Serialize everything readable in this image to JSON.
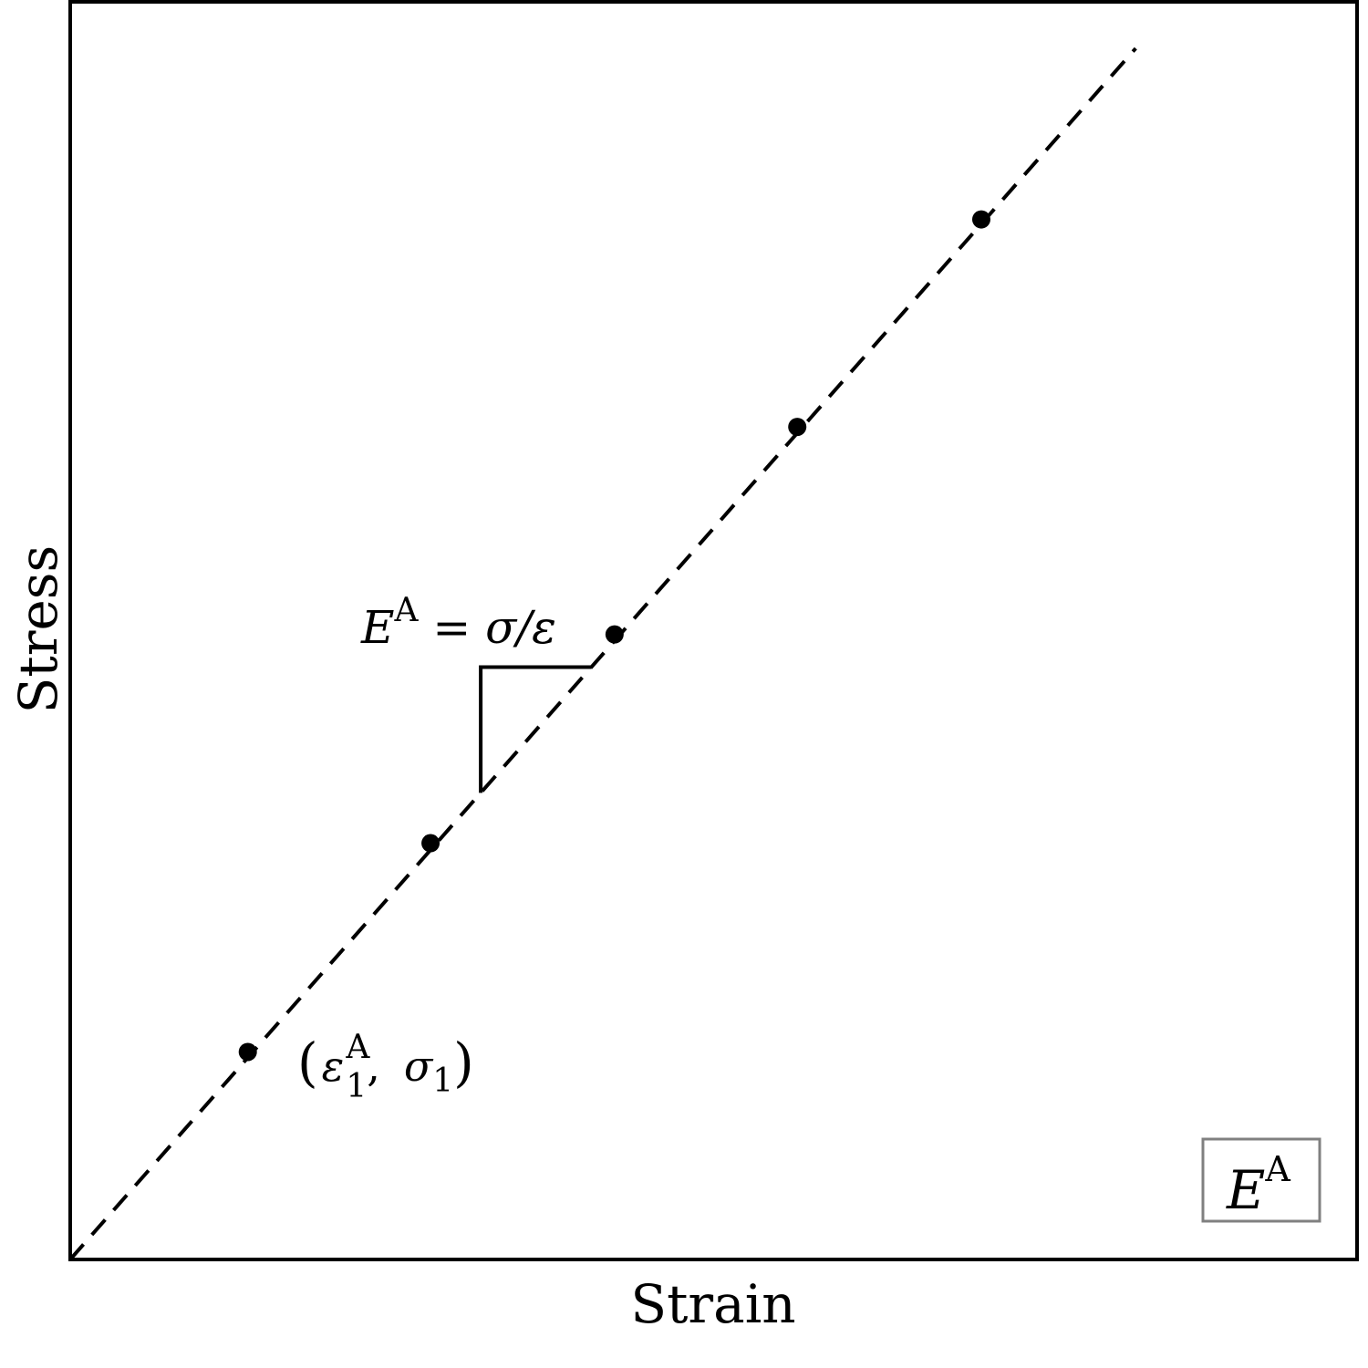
{
  "chart_data": {
    "type": "scatter",
    "xlabel": "Strain",
    "ylabel": "Stress",
    "xlim": [
      0,
      1
    ],
    "ylim": [
      0,
      1
    ],
    "grid": false,
    "series": [
      {
        "points": [
          {
            "x": 0.138,
            "y": 0.165
          },
          {
            "x": 0.28,
            "y": 0.331
          },
          {
            "x": 0.423,
            "y": 0.497
          },
          {
            "x": 0.565,
            "y": 0.662
          },
          {
            "x": 0.708,
            "y": 0.827
          }
        ]
      }
    ],
    "fit_line": {
      "x": [
        0,
        0.828
      ],
      "y": [
        0,
        0.963
      ],
      "style": "dashed"
    },
    "annotations": {
      "point_label": {
        "open": "(",
        "eps": "ε",
        "sup": "A",
        "sub1": "1",
        "comma": ",",
        "sigma": "σ",
        "sub2": "1",
        "close": ")"
      },
      "slope_label": {
        "E": "E",
        "sup": "A",
        "rest": " = σ/ε"
      }
    },
    "legend": {
      "placement": "bottom-right",
      "E": "E",
      "sup": "A"
    }
  }
}
